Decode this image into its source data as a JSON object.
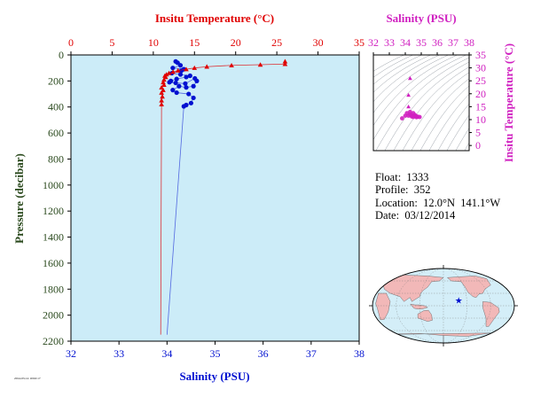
{
  "colors": {
    "temperature": "#e00000",
    "salinity": "#0010d0",
    "ts_diagram": "#d020c0",
    "axis_green": "#2b4a1e",
    "plot_bg": "#ccecf8",
    "land": "#f2b8b8",
    "ocean": "#d4eef8",
    "float_marker": "#0010d0"
  },
  "info": {
    "float": "Float:  1333",
    "profile": "Profile:  352",
    "location": "Location:  12.0°N  141.1°W",
    "date": "Date:  03/12/2014"
  },
  "footer_note": "2014-03-14 10:02:17",
  "map": {
    "marker_icon": "star-icon",
    "float_lon": -141.1,
    "float_lat": 12.0,
    "grid": true
  },
  "chart_data": [
    {
      "type": "line",
      "title": "",
      "ylabel": "Pressure (decibar)",
      "y_inverted": true,
      "ylim": [
        0,
        2200
      ],
      "y_ticks": [
        0,
        200,
        400,
        600,
        800,
        1000,
        1200,
        1400,
        1600,
        1800,
        2000,
        2200
      ],
      "grid": false,
      "axes": [
        {
          "name": "Insitu Temperature (°C)",
          "position": "top",
          "xlim": [
            0,
            35
          ],
          "ticks": [
            0,
            5,
            10,
            15,
            20,
            25,
            30,
            35
          ]
        },
        {
          "name": "Salinity (PSU)",
          "position": "bottom",
          "xlim": [
            32,
            38
          ],
          "ticks": [
            32,
            33,
            34,
            35,
            36,
            37,
            38
          ]
        }
      ],
      "series": [
        {
          "name": "Insitu Temperature (°C)",
          "axis": "top",
          "marker": "triangle",
          "points": [
            {
              "x": 26.0,
              "y": 50
            },
            {
              "x": 26.0,
              "y": 70
            },
            {
              "x": 23.0,
              "y": 75
            },
            {
              "x": 19.5,
              "y": 80
            },
            {
              "x": 16.5,
              "y": 90
            },
            {
              "x": 15.0,
              "y": 100
            },
            {
              "x": 14.0,
              "y": 110
            },
            {
              "x": 13.0,
              "y": 120
            },
            {
              "x": 12.4,
              "y": 130
            },
            {
              "x": 11.9,
              "y": 140
            },
            {
              "x": 11.6,
              "y": 150
            },
            {
              "x": 11.4,
              "y": 160
            },
            {
              "x": 11.5,
              "y": 170
            },
            {
              "x": 11.3,
              "y": 190
            },
            {
              "x": 11.2,
              "y": 210
            },
            {
              "x": 11.3,
              "y": 230
            },
            {
              "x": 11.0,
              "y": 250
            },
            {
              "x": 11.2,
              "y": 270
            },
            {
              "x": 11.0,
              "y": 290
            },
            {
              "x": 11.1,
              "y": 320
            },
            {
              "x": 11.0,
              "y": 350
            },
            {
              "x": 11.0,
              "y": 380
            },
            {
              "x": 10.9,
              "y": 2150
            }
          ]
        },
        {
          "name": "Salinity (PSU)",
          "axis": "bottom",
          "marker": "circle",
          "points": [
            {
              "x": 34.18,
              "y": 50
            },
            {
              "x": 34.22,
              "y": 60
            },
            {
              "x": 34.28,
              "y": 80
            },
            {
              "x": 34.12,
              "y": 100
            },
            {
              "x": 34.35,
              "y": 110
            },
            {
              "x": 34.3,
              "y": 120
            },
            {
              "x": 34.1,
              "y": 140
            },
            {
              "x": 34.28,
              "y": 150
            },
            {
              "x": 34.48,
              "y": 160
            },
            {
              "x": 34.4,
              "y": 170
            },
            {
              "x": 34.2,
              "y": 185
            },
            {
              "x": 34.08,
              "y": 200
            },
            {
              "x": 34.05,
              "y": 210
            },
            {
              "x": 34.18,
              "y": 215
            },
            {
              "x": 34.38,
              "y": 220
            },
            {
              "x": 34.58,
              "y": 180
            },
            {
              "x": 34.62,
              "y": 200
            },
            {
              "x": 34.55,
              "y": 240
            },
            {
              "x": 34.4,
              "y": 250
            },
            {
              "x": 34.25,
              "y": 240
            },
            {
              "x": 34.12,
              "y": 270
            },
            {
              "x": 34.2,
              "y": 290
            },
            {
              "x": 34.45,
              "y": 300
            },
            {
              "x": 34.55,
              "y": 330
            },
            {
              "x": 34.5,
              "y": 370
            },
            {
              "x": 34.4,
              "y": 385
            },
            {
              "x": 34.35,
              "y": 395
            },
            {
              "x": 34.0,
              "y": 2150
            }
          ]
        }
      ]
    },
    {
      "type": "scatter",
      "title": "",
      "xlabel": "Salinity (PSU)",
      "ylabel": "Insitu Temperature (°C)",
      "xlim": [
        32,
        38
      ],
      "ylim": [
        -2,
        35
      ],
      "x_ticks": [
        32,
        33,
        34,
        35,
        36,
        37,
        38
      ],
      "y_ticks": [
        0,
        5,
        10,
        15,
        20,
        25,
        30,
        35
      ],
      "points": [
        {
          "x": 34.3,
          "y": 26.0
        },
        {
          "x": 34.2,
          "y": 19.5
        },
        {
          "x": 34.2,
          "y": 15.0
        },
        {
          "x": 34.0,
          "y": 11.5
        },
        {
          "x": 34.1,
          "y": 12.5
        },
        {
          "x": 34.2,
          "y": 11.5
        },
        {
          "x": 34.3,
          "y": 12.0
        },
        {
          "x": 34.4,
          "y": 11.2
        },
        {
          "x": 34.5,
          "y": 11.0
        },
        {
          "x": 34.6,
          "y": 11.5
        },
        {
          "x": 34.7,
          "y": 11.3
        },
        {
          "x": 34.8,
          "y": 11.1
        },
        {
          "x": 34.9,
          "y": 11.0
        },
        {
          "x": 34.5,
          "y": 12.5
        },
        {
          "x": 34.3,
          "y": 13.0
        },
        {
          "x": 34.6,
          "y": 11.8
        },
        {
          "x": 34.4,
          "y": 11.7
        },
        {
          "x": 34.7,
          "y": 10.9
        },
        {
          "x": 33.8,
          "y": 10.5
        }
      ]
    }
  ]
}
